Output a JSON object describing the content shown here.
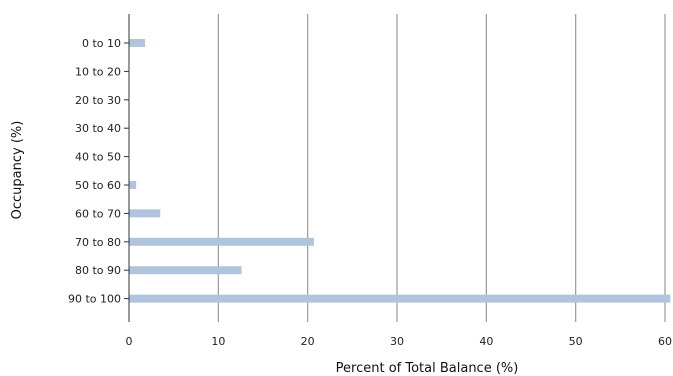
{
  "chart_data": {
    "type": "bar",
    "orientation": "horizontal",
    "categories": [
      "0 to 10",
      "10 to 20",
      "20 to 30",
      "30 to 40",
      "40 to 50",
      "50 to 60",
      "60 to 70",
      "70 to 80",
      "80 to 90",
      "90 to 100"
    ],
    "values": [
      1.8,
      0,
      0,
      0,
      0,
      0.8,
      3.5,
      20.7,
      12.6,
      60.6
    ],
    "xlabel": "Percent of Total Balance (%)",
    "ylabel": "Occupancy (%)",
    "xlim": [
      0,
      60
    ],
    "xticks": [
      0,
      10,
      20,
      30,
      40,
      50,
      60
    ],
    "xtick_labels": [
      "0",
      "10",
      "20",
      "30",
      "40",
      "50",
      "60"
    ],
    "grid": "vertical",
    "bar_color": "#b0c4de",
    "grid_color": "#999999"
  }
}
